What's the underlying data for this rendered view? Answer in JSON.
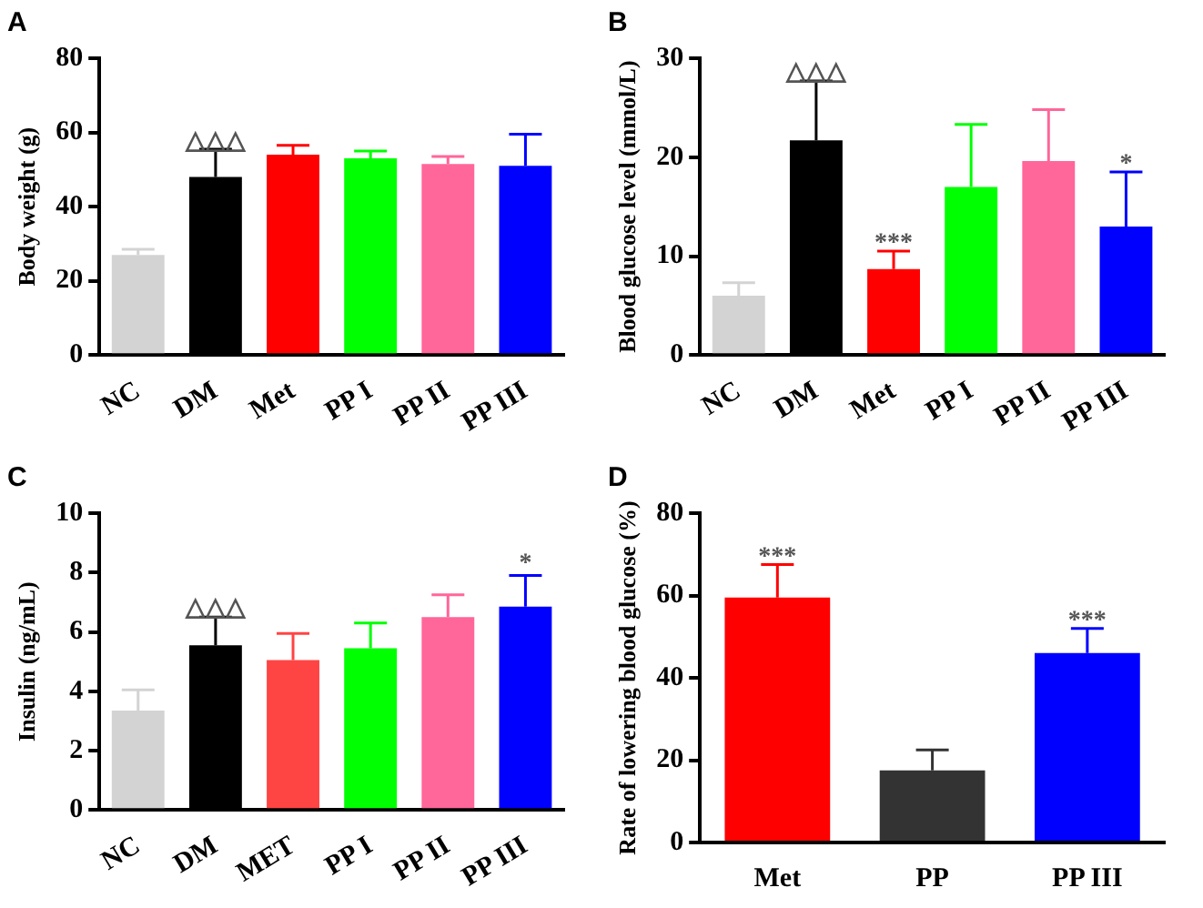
{
  "chart_data": [
    {
      "type": "bar",
      "title": "A",
      "ylabel": "Body weight (g)",
      "categories": [
        "NC",
        "DM",
        "Met",
        "PP I",
        "PP II",
        "PP III"
      ],
      "values": [
        27,
        48,
        54,
        53,
        51.5,
        51
      ],
      "colors": [
        "#d3d3d3",
        "#000000",
        "#ff0000",
        "#00ff00",
        "#ff6699",
        "#0000ff"
      ],
      "errors": [
        [
          27,
          28.5
        ],
        [
          48,
          55.5
        ],
        [
          54,
          56.5
        ],
        [
          53,
          55
        ],
        [
          51.5,
          53.5
        ],
        [
          51,
          59.5
        ]
      ],
      "ylim": [
        0,
        80
      ],
      "yticks": [
        0,
        20,
        40,
        60,
        80
      ],
      "annotations": [
        {
          "text": "△△△",
          "x": "DM",
          "y": 56
        }
      ]
    },
    {
      "type": "bar",
      "title": "B",
      "ylabel": "Blood glucose level (mmol/L)",
      "categories": [
        "NC",
        "DM",
        "Met",
        "PP I",
        "PP II",
        "PP III"
      ],
      "values": [
        6,
        21.7,
        8.7,
        17,
        19.6,
        13
      ],
      "colors": [
        "#d3d3d3",
        "#000000",
        "#ff0000",
        "#00ff00",
        "#ff6699",
        "#0000ff"
      ],
      "errors": [
        [
          6,
          7.3
        ],
        [
          21.7,
          27.7
        ],
        [
          8.7,
          10.5
        ],
        [
          17,
          23.3
        ],
        [
          19.6,
          24.8
        ],
        [
          13,
          18.5
        ]
      ],
      "ylim": [
        0,
        30
      ],
      "yticks": [
        0,
        10,
        20,
        30
      ],
      "annotations": [
        {
          "text": "△△△",
          "x": "DM",
          "y": 28
        },
        {
          "text": "***",
          "x": "Met",
          "y": 10.7
        },
        {
          "text": "*",
          "x": "PP III",
          "y": 18.7
        }
      ]
    },
    {
      "type": "bar",
      "title": "C",
      "ylabel": "Insulin (ng/mL)",
      "categories": [
        "NC",
        "DM",
        "MET",
        "PP I",
        "PP II",
        "PP III"
      ],
      "values": [
        3.35,
        5.55,
        5.05,
        5.45,
        6.5,
        6.85
      ],
      "colors": [
        "#d3d3d3",
        "#000000",
        "#ff4444",
        "#00ff00",
        "#ff6699",
        "#0000ff"
      ],
      "errors": [
        [
          3.35,
          4.05
        ],
        [
          5.55,
          6.5
        ],
        [
          5.05,
          5.95
        ],
        [
          5.45,
          6.3
        ],
        [
          6.5,
          7.25
        ],
        [
          6.85,
          7.9
        ]
      ],
      "ylim": [
        0,
        10
      ],
      "yticks": [
        0,
        2,
        4,
        6,
        8,
        10
      ],
      "annotations": [
        {
          "text": "△△△",
          "x": "DM",
          "y": 6.6
        },
        {
          "text": "*",
          "x": "PP III",
          "y": 8.1
        }
      ]
    },
    {
      "type": "bar",
      "title": "D",
      "ylabel": "Rate of lowering blood glucose (%)",
      "categories": [
        "Met",
        "PP",
        "PP III"
      ],
      "values": [
        59.5,
        17.5,
        46
      ],
      "colors": [
        "#ff0000",
        "#333333",
        "#0000ff"
      ],
      "errors": [
        [
          59.5,
          67.5
        ],
        [
          17.5,
          22.5
        ],
        [
          46,
          52
        ]
      ],
      "ylim": [
        0,
        80
      ],
      "yticks": [
        0,
        20,
        40,
        60,
        80
      ],
      "annotations": [
        {
          "text": "***",
          "x": "Met",
          "y": 68
        },
        {
          "text": "***",
          "x": "PP III",
          "y": 52.5
        }
      ]
    }
  ]
}
